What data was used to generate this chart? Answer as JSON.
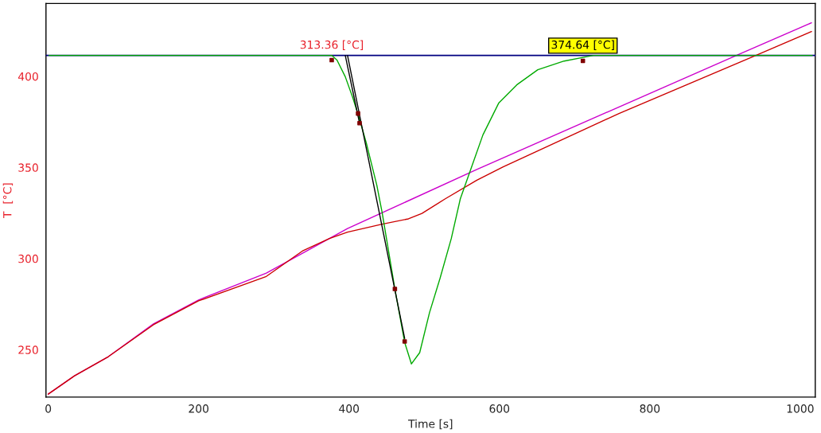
{
  "chart_data": {
    "type": "line",
    "xlabel": "Time [s]",
    "ylabel": "T  [°C]",
    "xlim": [
      -3,
      1020
    ],
    "ylim": [
      224,
      440
    ],
    "xticks": [
      0,
      200,
      400,
      600,
      800,
      1000
    ],
    "yticks": [
      250,
      300,
      350,
      400
    ],
    "grid": false,
    "legend": false,
    "line_style": "solid",
    "marker": "none",
    "series": [
      {
        "color": "#cc00cc",
        "x": [
          0,
          35,
          80,
          140,
          200,
          290,
          398,
          570,
          920,
          1015
        ],
        "values": [
          225.6,
          235.7,
          246.2,
          264.2,
          277.3,
          292.0,
          316.5,
          348.9,
          412.4,
          429.4
        ]
      },
      {
        "color": "#cc0000",
        "x": [
          0,
          35,
          80,
          140,
          200,
          290,
          339,
          374,
          398,
          444,
          479,
          497,
          528,
          570,
          605,
          759,
          941,
          1015
        ],
        "values": [
          225.6,
          235.7,
          246.2,
          263.7,
          276.8,
          290.2,
          304.4,
          311.0,
          314.5,
          318.9,
          321.8,
          324.8,
          332.8,
          343.0,
          350.3,
          379.6,
          411.5,
          424.6
        ]
      },
      {
        "color": "#00aa00",
        "x": [
          1,
          377,
          384,
          395,
          405,
          413,
          423,
          437,
          444,
          461,
          474,
          483,
          494,
          507,
          521,
          536,
          548,
          563,
          578,
          599,
          623,
          651,
          686,
          714,
          725,
          1016
        ],
        "values": [
          411.5,
          411.5,
          408.9,
          399.8,
          388.3,
          377.8,
          363.4,
          340.2,
          325.3,
          283.3,
          254.0,
          242.2,
          248.4,
          270.3,
          289.1,
          311.0,
          332.8,
          350.3,
          367.8,
          385.3,
          395.3,
          403.6,
          408.4,
          410.6,
          411.5,
          411.5
        ]
      },
      {
        "color": "#000000",
        "x": [
          398,
          474
        ],
        "values": [
          411.5,
          256.2
        ]
      },
      {
        "color": "#000000",
        "x": [
          395,
          414
        ],
        "values": [
          411.5,
          374.3
        ]
      },
      {
        "type": "scatter",
        "color": "#800000",
        "marker": "square",
        "x": [
          377,
          412,
          414,
          461,
          474,
          711
        ],
        "values": [
          408.9,
          379.6,
          374.3,
          283.3,
          254.5,
          408.5
        ]
      }
    ],
    "ref_lines": [
      {
        "axis": "y",
        "value": 411.5,
        "color": "#000080"
      }
    ],
    "annotations": [
      {
        "text": "313.36 [°C]",
        "x": 377,
        "y": 411.5
      },
      {
        "text": "374.64 [°C]",
        "x": 711,
        "y": 411.5
      }
    ]
  }
}
